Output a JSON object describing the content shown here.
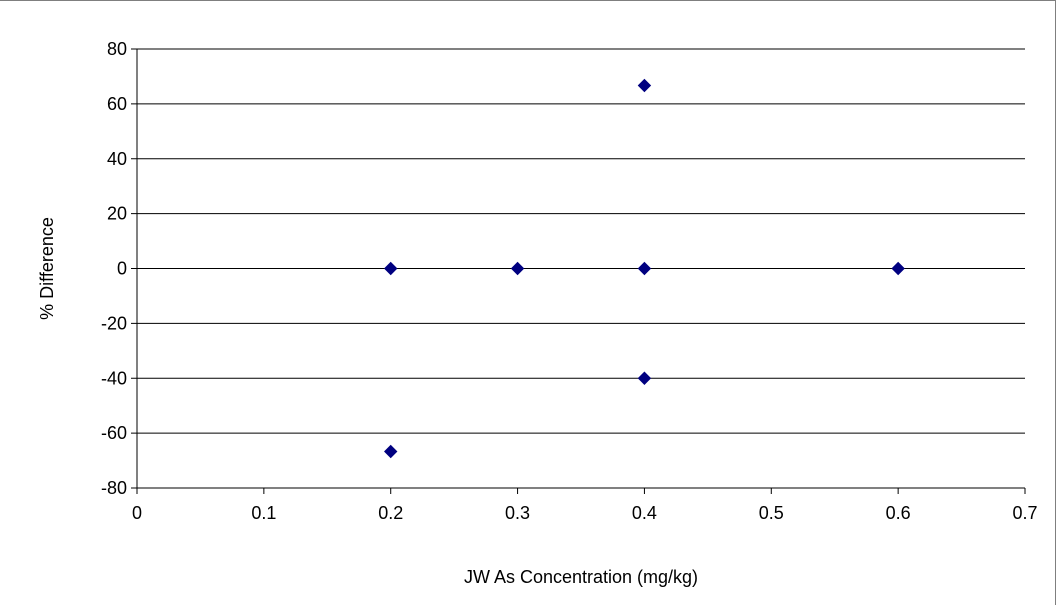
{
  "chart_data": {
    "type": "scatter",
    "title": "",
    "xlabel": "JW As Concentration (mg/kg)",
    "ylabel": "% Difference",
    "xlim": [
      0,
      0.7
    ],
    "ylim": [
      -80,
      80
    ],
    "x_ticks": [
      0,
      0.1,
      0.2,
      0.3,
      0.4,
      0.5,
      0.6,
      0.7
    ],
    "x_tick_labels": [
      "0",
      "0.1",
      "0.2",
      "0.3",
      "0.4",
      "0.5",
      "0.6",
      "0.7"
    ],
    "y_ticks": [
      -80,
      -60,
      -40,
      -20,
      0,
      20,
      40,
      60,
      80
    ],
    "y_tick_labels": [
      "-80",
      "-60",
      "-40",
      "-20",
      "0",
      "20",
      "40",
      "60",
      "80"
    ],
    "grid": "horizontal major gridlines",
    "legend": "none",
    "marker": "diamond",
    "marker_color": "#000080",
    "series": [
      {
        "points": [
          {
            "x": 0.2,
            "y": 0
          },
          {
            "x": 0.2,
            "y": -66.7
          },
          {
            "x": 0.3,
            "y": 0
          },
          {
            "x": 0.4,
            "y": 66.7
          },
          {
            "x": 0.4,
            "y": 0
          },
          {
            "x": 0.4,
            "y": -40
          },
          {
            "x": 0.6,
            "y": 0
          }
        ]
      }
    ]
  }
}
